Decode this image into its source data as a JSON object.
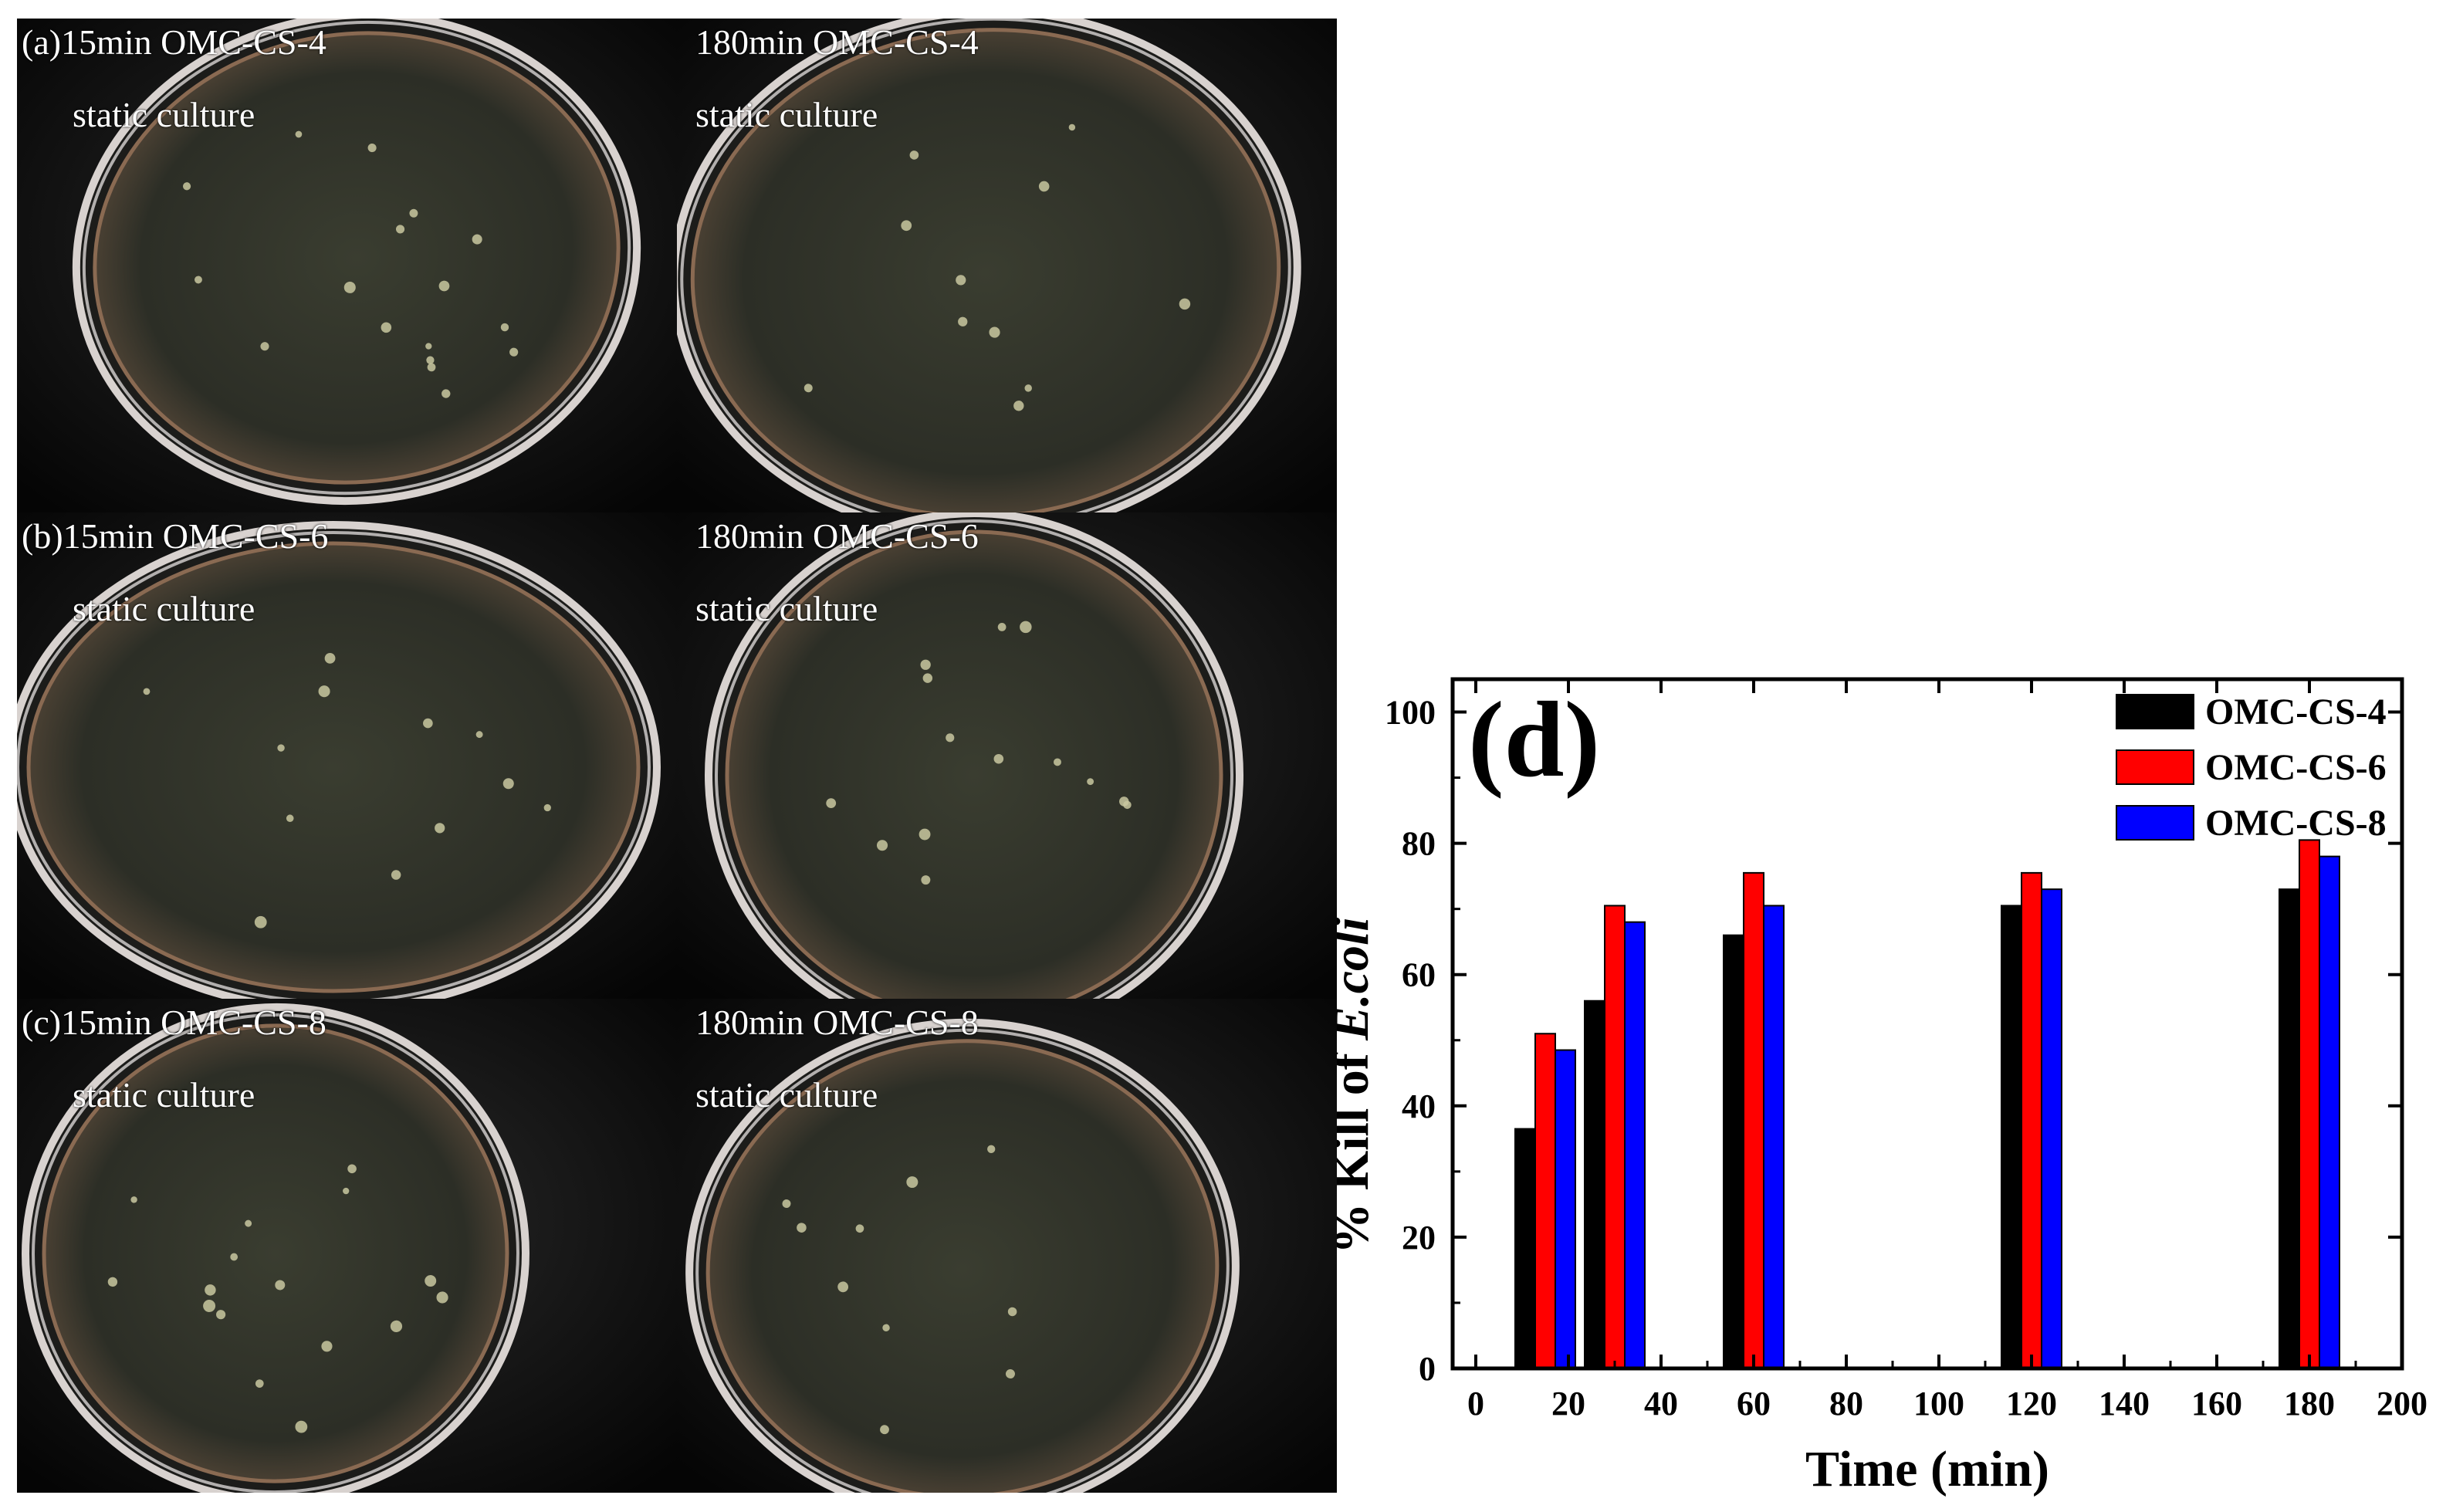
{
  "panels": [
    {
      "id": "a-15",
      "label": "(a)15min OMC-CS-4",
      "sublabel": "static culture"
    },
    {
      "id": "a-180",
      "label": "180min OMC-CS-4",
      "sublabel": "static culture"
    },
    {
      "id": "b-15",
      "label": "(b)15min OMC-CS-6",
      "sublabel": "static culture"
    },
    {
      "id": "b-180",
      "label": "180min OMC-CS-6",
      "sublabel": "static culture"
    },
    {
      "id": "c-15",
      "label": "(c)15min OMC-CS-8",
      "sublabel": "static culture"
    },
    {
      "id": "c-180",
      "label": "180min OMC-CS-8",
      "sublabel": "static culture"
    }
  ],
  "chart_data": {
    "type": "bar",
    "title": "(d)",
    "xlabel": "Time (min)",
    "ylabel_prefix": "% Kill of ",
    "ylabel_italic": "E.coli",
    "xlim": [
      -5,
      200
    ],
    "ylim": [
      0,
      105
    ],
    "xticks": [
      0,
      20,
      40,
      60,
      80,
      100,
      120,
      140,
      160,
      180,
      200
    ],
    "yticks": [
      0,
      20,
      40,
      60,
      80,
      100
    ],
    "x": [
      15,
      30,
      60,
      120,
      180
    ],
    "legend_position": "top-right",
    "grid": false,
    "series": [
      {
        "name": "OMC-CS-4",
        "color": "#000000",
        "values": [
          36.5,
          56,
          66,
          70.5,
          73
        ]
      },
      {
        "name": "OMC-CS-6",
        "color": "#ff0000",
        "values": [
          51,
          70.5,
          75.5,
          75.5,
          80.5
        ]
      },
      {
        "name": "OMC-CS-8",
        "color": "#0000ff",
        "values": [
          48.5,
          68,
          70.5,
          73,
          78
        ]
      }
    ]
  }
}
